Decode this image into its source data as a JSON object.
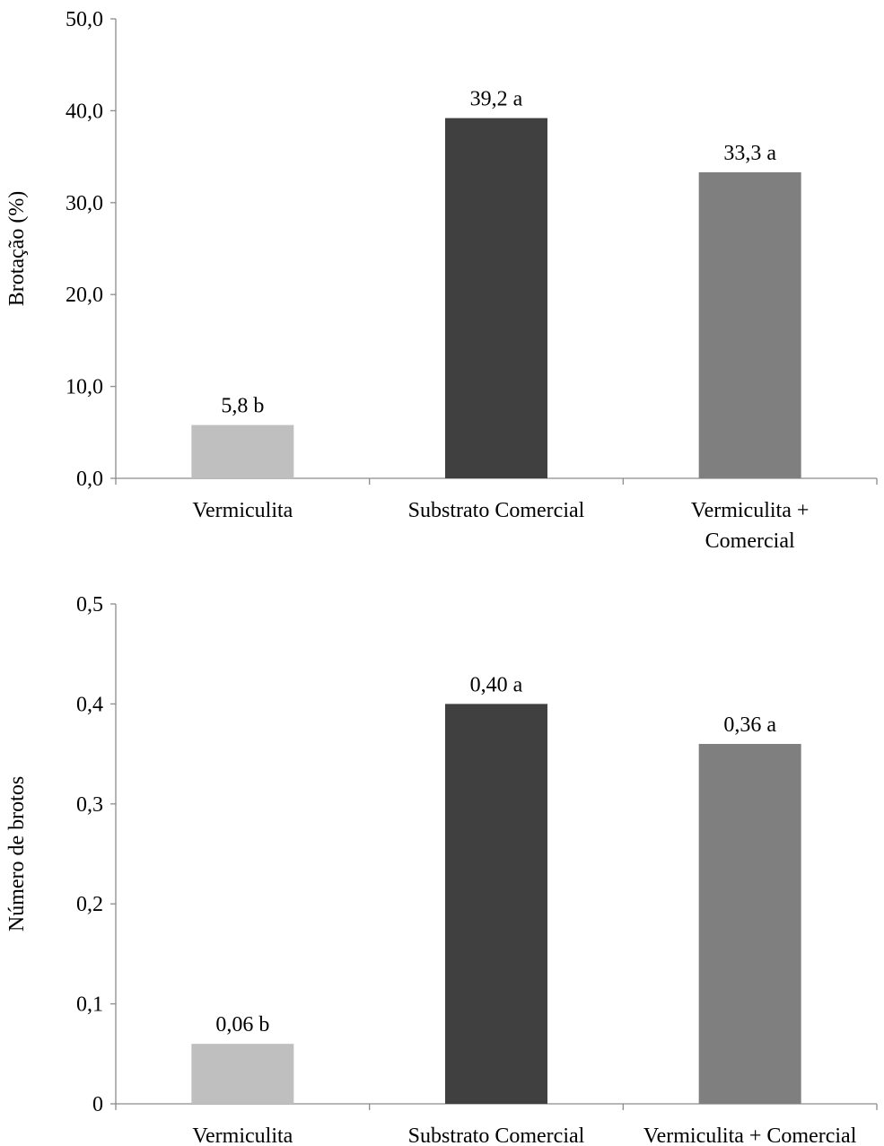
{
  "chart_data": [
    {
      "type": "bar",
      "ylabel": "Brotação (%)",
      "xlabel": "",
      "ylim": [
        0,
        50
      ],
      "yticks": [
        "0,0",
        "10,0",
        "20,0",
        "30,0",
        "40,0",
        "50,0"
      ],
      "ytick_values": [
        0,
        10,
        20,
        30,
        40,
        50
      ],
      "grid": false,
      "categories": [
        [
          "Vermiculita"
        ],
        [
          "Substrato Comercial"
        ],
        [
          "Vermiculita +",
          "Comercial"
        ]
      ],
      "values": [
        5.8,
        39.2,
        33.3
      ],
      "data_labels": [
        "5,8 b",
        "39,2 a",
        "33,3 a"
      ],
      "colors": [
        "#bfbfbf",
        "#404040",
        "#7f7f7f"
      ]
    },
    {
      "type": "bar",
      "ylabel": "Número de brotos",
      "xlabel": "",
      "ylim": [
        0,
        0.5
      ],
      "yticks": [
        "0",
        "0,1",
        "0,2",
        "0,3",
        "0,4",
        "0,5"
      ],
      "ytick_values": [
        0,
        0.1,
        0.2,
        0.3,
        0.4,
        0.5
      ],
      "grid": false,
      "categories": [
        [
          "Vermiculita"
        ],
        [
          "Substrato Comercial"
        ],
        [
          "Vermiculita + Comercial"
        ]
      ],
      "values": [
        0.06,
        0.4,
        0.36
      ],
      "data_labels": [
        "0,06 b",
        "0,40 a",
        "0,36 a"
      ],
      "colors": [
        "#bfbfbf",
        "#404040",
        "#7f7f7f"
      ]
    }
  ]
}
